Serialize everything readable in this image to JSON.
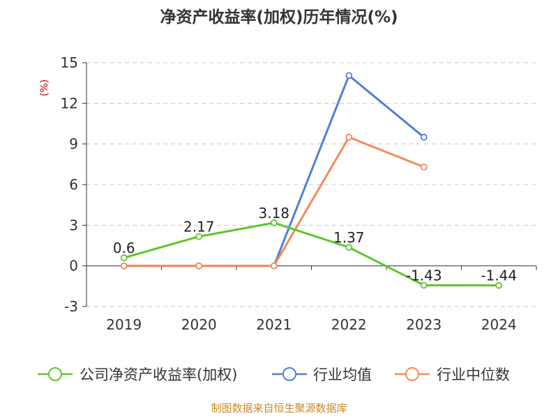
{
  "chart_data": {
    "type": "line",
    "title": "净资产收益率(加权)历年情况(%)",
    "ylabel": "(%)",
    "xlabel": "",
    "categories": [
      "2019",
      "2020",
      "2021",
      "2022",
      "2023",
      "2024"
    ],
    "ylim": [
      -3,
      15
    ],
    "yticks": [
      -3,
      0,
      3,
      6,
      9,
      12,
      15
    ],
    "grid": true,
    "legend_position": "bottom",
    "series": [
      {
        "name": "公司净资产收益率(加权)",
        "color": "#5dc72b",
        "values": [
          0.6,
          2.17,
          3.18,
          1.37,
          -1.43,
          -1.44
        ],
        "labels": [
          "0.6",
          "2.17",
          "3.18",
          "1.37",
          "-1.43",
          "-1.44"
        ]
      },
      {
        "name": "行业均值",
        "color": "#4f7fdb",
        "values": [
          0,
          0,
          0,
          14.05,
          9.5,
          null
        ]
      },
      {
        "name": "行业中位数",
        "color": "#f58a5a",
        "values": [
          0,
          0,
          0,
          9.5,
          7.3,
          null
        ]
      }
    ]
  },
  "source": "制图数据来自恒生聚源数据库"
}
